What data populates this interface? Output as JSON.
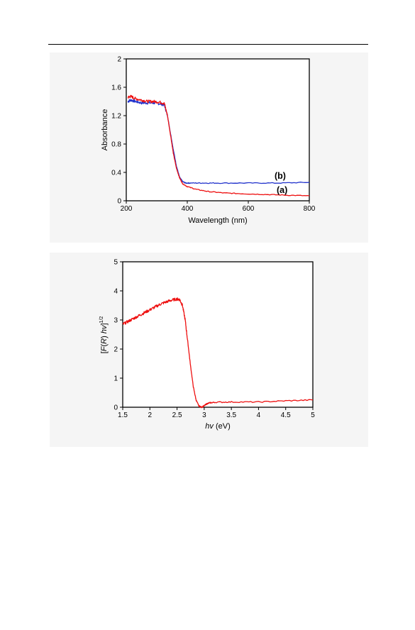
{
  "chart_data": [
    {
      "type": "line",
      "xlabel": "Wavelength (nm)",
      "ylabel": "Absorbance",
      "xlim": [
        200,
        800
      ],
      "ylim": [
        0,
        2
      ],
      "xticks": [
        200,
        400,
        600,
        800
      ],
      "yticks": [
        0,
        0.4,
        0.8,
        1.2,
        1.6,
        2
      ],
      "xtick_labels": [
        "200",
        "400",
        "600",
        "800"
      ],
      "ytick_labels": [
        "0",
        "0.4",
        "0.8",
        "1.2",
        "1.6",
        "2"
      ],
      "grid": false,
      "series": [
        {
          "name": "(b)",
          "color": "#2233cc",
          "x": [
            205,
            215,
            230,
            250,
            270,
            290,
            310,
            325,
            335,
            345,
            355,
            365,
            375,
            385,
            395,
            410,
            450,
            500,
            600,
            700,
            800
          ],
          "y": [
            1.4,
            1.42,
            1.4,
            1.38,
            1.38,
            1.38,
            1.37,
            1.35,
            1.2,
            0.95,
            0.7,
            0.48,
            0.33,
            0.27,
            0.25,
            0.25,
            0.25,
            0.25,
            0.25,
            0.25,
            0.26
          ]
        },
        {
          "name": "(a)",
          "color": "#ee1111",
          "x": [
            205,
            215,
            230,
            250,
            270,
            290,
            310,
            325,
            335,
            345,
            355,
            365,
            375,
            385,
            400,
            430,
            470,
            520,
            580,
            650,
            720,
            800
          ],
          "y": [
            1.46,
            1.47,
            1.44,
            1.42,
            1.4,
            1.4,
            1.39,
            1.37,
            1.2,
            0.93,
            0.65,
            0.45,
            0.32,
            0.24,
            0.2,
            0.16,
            0.13,
            0.11,
            0.1,
            0.09,
            0.08,
            0.07
          ]
        }
      ]
    },
    {
      "type": "line",
      "xlabel_italic": "hv",
      "xlabel_rest": " (eV)",
      "ylabel_pre": "[",
      "ylabel_italic1": "F",
      "ylabel_mid": "(",
      "ylabel_italic2": "R",
      "ylabel_mid2": ") ",
      "ylabel_italic3": "hv",
      "ylabel_post": "]",
      "ylabel_sup": "1/2",
      "xlim": [
        1.5,
        5
      ],
      "ylim": [
        0,
        5
      ],
      "xticks": [
        1.5,
        2,
        2.5,
        3,
        3.5,
        4,
        4.5,
        5
      ],
      "yticks": [
        0,
        1,
        2,
        3,
        4,
        5
      ],
      "xtick_labels": [
        "1.5",
        "2",
        "2.5",
        "3",
        "3.5",
        "4",
        "4.5",
        "5"
      ],
      "ytick_labels": [
        "0",
        "1",
        "2",
        "3",
        "4",
        "5"
      ],
      "grid": false,
      "series": [
        {
          "color": "#ee1111",
          "x": [
            1.5,
            1.6,
            1.7,
            1.8,
            1.9,
            2.0,
            2.1,
            2.2,
            2.3,
            2.4,
            2.5,
            2.55,
            2.6,
            2.65,
            2.7,
            2.75,
            2.8,
            2.85,
            2.9,
            2.95,
            3.0,
            3.05,
            3.1,
            3.2,
            3.5,
            4.0,
            4.5,
            5.0
          ],
          "y": [
            2.85,
            2.95,
            3.05,
            3.15,
            3.25,
            3.35,
            3.45,
            3.55,
            3.62,
            3.68,
            3.72,
            3.7,
            3.5,
            3.0,
            2.2,
            1.4,
            0.7,
            0.25,
            0.05,
            0.0,
            0.05,
            0.12,
            0.15,
            0.17,
            0.18,
            0.18,
            0.22,
            0.25
          ]
        }
      ]
    }
  ],
  "annotations": {
    "label_b": "(b)",
    "label_a": "(a)"
  }
}
